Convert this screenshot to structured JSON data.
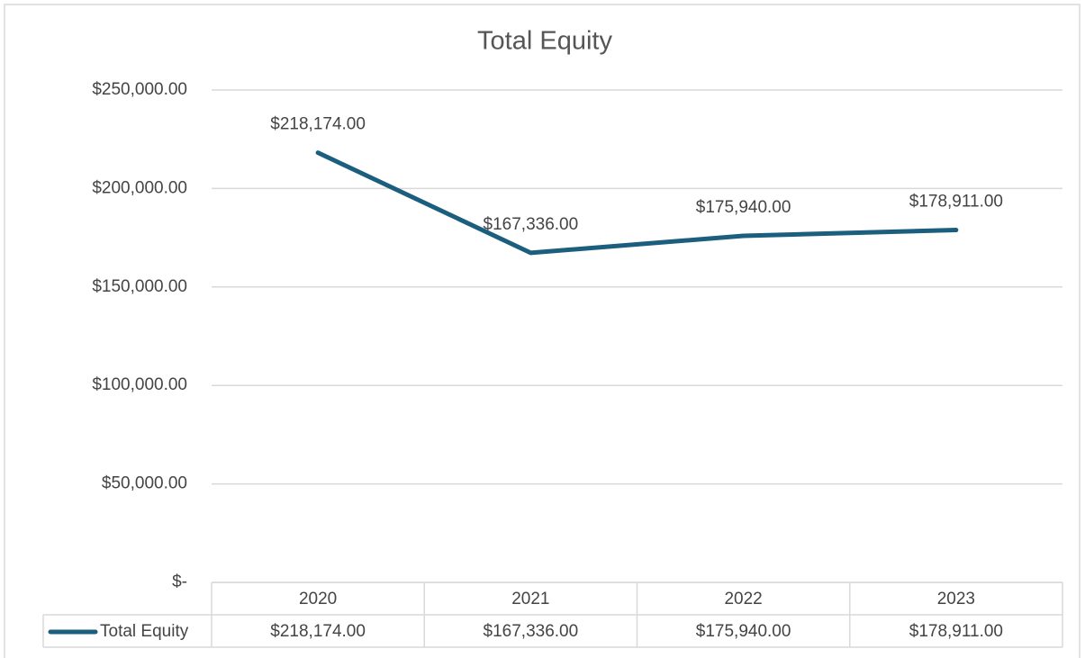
{
  "chart_data": {
    "type": "line",
    "title": "Total Equity",
    "categories": [
      "2020",
      "2021",
      "2022",
      "2023"
    ],
    "series": [
      {
        "name": "Total Equity",
        "color": "#1b5e7e",
        "values": [
          218174,
          167336,
          175940,
          178911
        ],
        "value_labels": [
          "$218,174.00",
          "$167,336.00",
          "$175,940.00",
          "$178,911.00"
        ]
      }
    ],
    "ylim": [
      0,
      250000
    ],
    "yticks": [
      {
        "value": 0,
        "label": "$-"
      },
      {
        "value": 50000,
        "label": "$50,000.00"
      },
      {
        "value": 100000,
        "label": "$100,000.00"
      },
      {
        "value": 150000,
        "label": "$150,000.00"
      },
      {
        "value": 200000,
        "label": "$200,000.00"
      },
      {
        "value": 250000,
        "label": "$250,000.00"
      }
    ],
    "grid": true,
    "data_table": true
  }
}
